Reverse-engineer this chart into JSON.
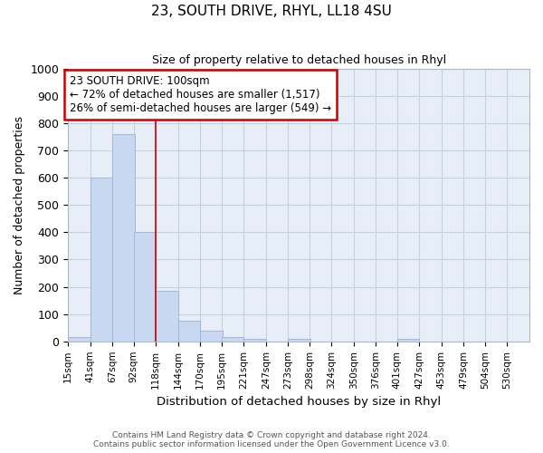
{
  "title1": "23, SOUTH DRIVE, RHYL, LL18 4SU",
  "title2": "Size of property relative to detached houses in Rhyl",
  "xlabel": "Distribution of detached houses by size in Rhyl",
  "ylabel": "Number of detached properties",
  "bin_edges": [
    15,
    41,
    67,
    92,
    118,
    144,
    170,
    195,
    221,
    247,
    273,
    298,
    324,
    350,
    376,
    401,
    427,
    453,
    479,
    504,
    530
  ],
  "bin_labels": [
    "15sqm",
    "41sqm",
    "67sqm",
    "92sqm",
    "118sqm",
    "144sqm",
    "170sqm",
    "195sqm",
    "221sqm",
    "247sqm",
    "273sqm",
    "298sqm",
    "324sqm",
    "350sqm",
    "376sqm",
    "401sqm",
    "427sqm",
    "453sqm",
    "479sqm",
    "504sqm",
    "530sqm"
  ],
  "bar_heights": [
    15,
    600,
    760,
    400,
    185,
    75,
    40,
    15,
    10,
    0,
    10,
    0,
    0,
    0,
    0,
    10,
    0,
    0,
    0,
    0
  ],
  "bar_color": "#c8d8f0",
  "bar_edge_color": "#a0b8d8",
  "red_line_x": 118,
  "ylim": [
    0,
    1000
  ],
  "yticks": [
    0,
    100,
    200,
    300,
    400,
    500,
    600,
    700,
    800,
    900,
    1000
  ],
  "annotation_title": "23 SOUTH DRIVE: 100sqm",
  "annotation_line1": "← 72% of detached houses are smaller (1,517)",
  "annotation_line2": "26% of semi-detached houses are larger (549) →",
  "annotation_box_color": "#ffffff",
  "annotation_box_edge_color": "#cc0000",
  "footnote1": "Contains HM Land Registry data © Crown copyright and database right 2024.",
  "footnote2": "Contains public sector information licensed under the Open Government Licence v3.0.",
  "bg_color": "#e8eef8",
  "grid_color": "#c8d0e0"
}
